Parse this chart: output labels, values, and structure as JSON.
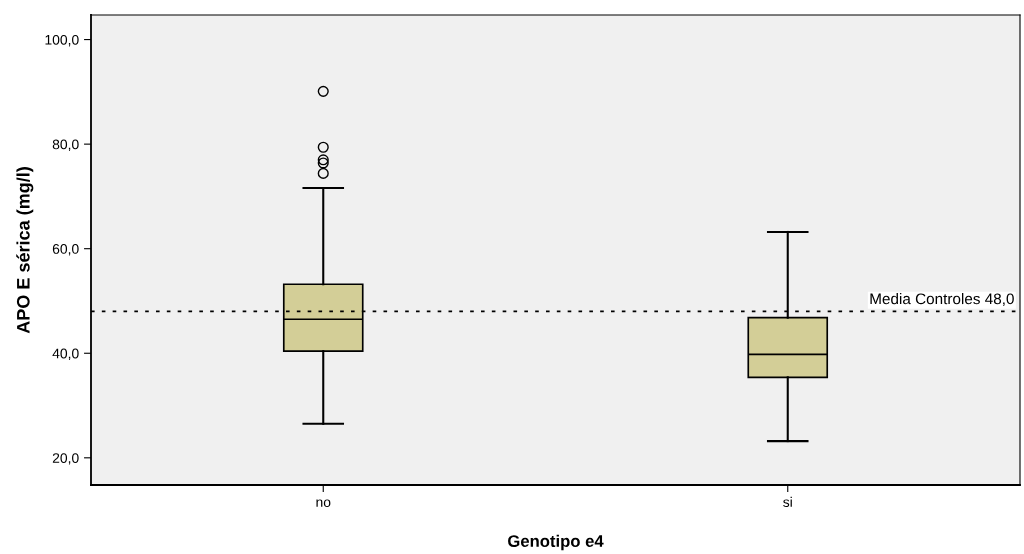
{
  "chart_data": {
    "type": "box",
    "xlabel": "Genotipo e4",
    "ylabel": "APO E sérica (mg/l)",
    "categories": [
      "no",
      "si"
    ],
    "boxes": [
      {
        "low": 26.5,
        "q1": 40.4,
        "median": 46.5,
        "q3": 53.2,
        "high": 71.6,
        "outliers": [
          90.1,
          79.4,
          77.0,
          76.4,
          74.4
        ]
      },
      {
        "low": 23.2,
        "q1": 35.4,
        "median": 39.8,
        "q3": 46.8,
        "high": 63.2
      }
    ],
    "color": "#d3ce97",
    "ylim": [
      14.8,
      104.7
    ],
    "yticks": [
      {
        "value": 20,
        "label": "20,0"
      },
      {
        "value": 40,
        "label": "40,0"
      },
      {
        "value": 60,
        "label": "60,0"
      },
      {
        "value": 80,
        "label": "80,0"
      },
      {
        "value": 100,
        "label": "100,0"
      }
    ],
    "ref_lines": [
      {
        "axis": "y",
        "value": 48.0,
        "label": "Media Controles 48,0",
        "line_style": "dotted"
      }
    ],
    "grid": false,
    "legend": false
  }
}
